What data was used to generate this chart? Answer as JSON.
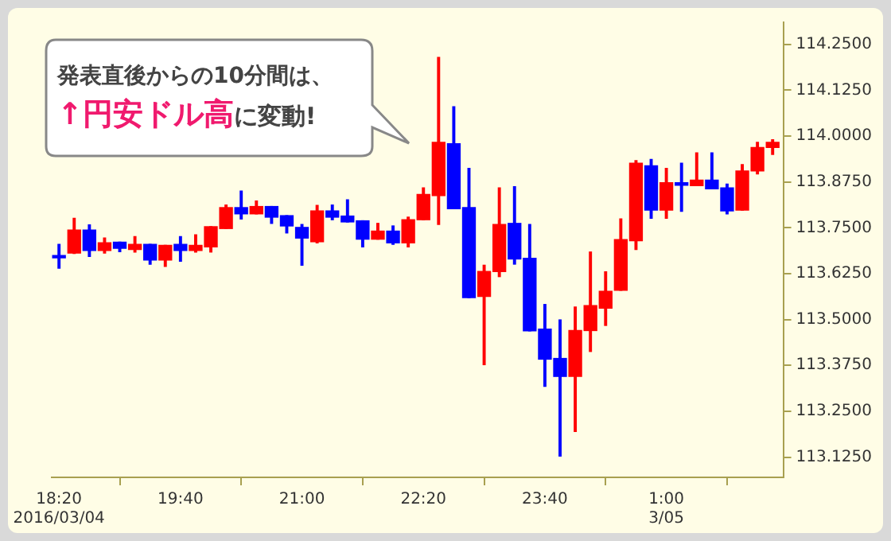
{
  "chart_data": {
    "type": "candlestick",
    "x": [
      "2016-03-04T18:20",
      "2016-03-04T18:30",
      "2016-03-04T18:40",
      "2016-03-04T18:50",
      "2016-03-04T19:00",
      "2016-03-04T19:10",
      "2016-03-04T19:20",
      "2016-03-04T19:30",
      "2016-03-04T19:40",
      "2016-03-04T19:50",
      "2016-03-04T20:00",
      "2016-03-04T20:10",
      "2016-03-04T20:20",
      "2016-03-04T20:30",
      "2016-03-04T20:40",
      "2016-03-04T20:50",
      "2016-03-04T21:00",
      "2016-03-04T21:10",
      "2016-03-04T21:20",
      "2016-03-04T21:30",
      "2016-03-04T21:40",
      "2016-03-04T21:50",
      "2016-03-04T22:00",
      "2016-03-04T22:10",
      "2016-03-04T22:20",
      "2016-03-04T22:30",
      "2016-03-04T22:40",
      "2016-03-04T22:50",
      "2016-03-04T23:00",
      "2016-03-04T23:10",
      "2016-03-04T23:20",
      "2016-03-04T23:30",
      "2016-03-04T23:40",
      "2016-03-04T23:50",
      "2016-03-05T00:00",
      "2016-03-05T00:10",
      "2016-03-05T00:20",
      "2016-03-05T00:30",
      "2016-03-05T00:40",
      "2016-03-05T00:50",
      "2016-03-05T01:00",
      "2016-03-05T01:10",
      "2016-03-05T01:20",
      "2016-03-05T01:30",
      "2016-03-05T01:40",
      "2016-03-05T01:50",
      "2016-03-05T02:00",
      "2016-03-05T02:10"
    ],
    "ohlc": [
      [
        113.671,
        113.705,
        113.64,
        113.668
      ],
      [
        113.681,
        113.776,
        113.68,
        113.744
      ],
      [
        113.744,
        113.758,
        113.672,
        113.688
      ],
      [
        113.688,
        113.722,
        113.681,
        113.709
      ],
      [
        113.711,
        113.711,
        113.685,
        113.694
      ],
      [
        113.691,
        113.726,
        113.684,
        113.705
      ],
      [
        113.705,
        113.705,
        113.651,
        113.662
      ],
      [
        113.662,
        113.702,
        113.645,
        113.702
      ],
      [
        113.705,
        113.726,
        113.659,
        113.688
      ],
      [
        113.688,
        113.731,
        113.684,
        113.702
      ],
      [
        113.698,
        113.753,
        113.684,
        113.753
      ],
      [
        113.748,
        113.812,
        113.748,
        113.805
      ],
      [
        113.805,
        113.85,
        113.774,
        113.788
      ],
      [
        113.788,
        113.823,
        113.788,
        113.808
      ],
      [
        113.808,
        113.808,
        113.762,
        113.779
      ],
      [
        113.783,
        113.783,
        113.736,
        113.755
      ],
      [
        113.751,
        113.759,
        113.648,
        113.722
      ],
      [
        113.712,
        113.811,
        113.709,
        113.796
      ],
      [
        113.796,
        113.812,
        113.772,
        113.779
      ],
      [
        113.782,
        113.826,
        113.766,
        113.766
      ],
      [
        113.769,
        113.769,
        113.698,
        113.719
      ],
      [
        113.719,
        113.762,
        113.719,
        113.741
      ],
      [
        113.741,
        113.755,
        113.705,
        113.709
      ],
      [
        113.709,
        113.779,
        113.698,
        113.772
      ],
      [
        113.772,
        113.859,
        113.772,
        113.841
      ],
      [
        113.838,
        114.214,
        113.759,
        113.983
      ],
      [
        113.979,
        114.08,
        113.802,
        113.802
      ],
      [
        113.805,
        113.912,
        113.56,
        113.56
      ],
      [
        113.563,
        113.648,
        113.377,
        113.631
      ],
      [
        113.631,
        113.859,
        113.617,
        113.759
      ],
      [
        113.762,
        113.862,
        113.651,
        113.665
      ],
      [
        113.667,
        113.759,
        113.469,
        113.469
      ],
      [
        113.474,
        113.541,
        113.318,
        113.392
      ],
      [
        113.394,
        113.499,
        113.128,
        113.345
      ],
      [
        113.345,
        113.534,
        113.195,
        113.47
      ],
      [
        113.47,
        113.684,
        113.413,
        113.538
      ],
      [
        113.531,
        113.63,
        113.484,
        113.577
      ],
      [
        113.58,
        113.774,
        113.58,
        113.718
      ],
      [
        113.715,
        113.933,
        113.691,
        113.926
      ],
      [
        113.919,
        113.936,
        113.776,
        113.798
      ],
      [
        113.798,
        113.912,
        113.776,
        113.873
      ],
      [
        113.873,
        113.926,
        113.795,
        113.866
      ],
      [
        113.865,
        113.954,
        113.865,
        113.88
      ],
      [
        113.88,
        113.954,
        113.856,
        113.856
      ],
      [
        113.859,
        113.869,
        113.788,
        113.796
      ],
      [
        113.798,
        113.922,
        113.798,
        113.905
      ],
      [
        113.905,
        113.983,
        113.897,
        113.969
      ],
      [
        113.969,
        113.99,
        113.95,
        113.983
      ]
    ],
    "colors": [
      "#0000ff",
      "#ff0000",
      "#0000ff",
      "#ff0000",
      "#0000ff",
      "#ff0000",
      "#0000ff",
      "#ff0000",
      "#0000ff",
      "#ff0000",
      "#ff0000",
      "#ff0000",
      "#0000ff",
      "#ff0000",
      "#0000ff",
      "#0000ff",
      "#0000ff",
      "#ff0000",
      "#0000ff",
      "#0000ff",
      "#0000ff",
      "#ff0000",
      "#0000ff",
      "#ff0000",
      "#ff0000",
      "#ff0000",
      "#0000ff",
      "#0000ff",
      "#ff0000",
      "#ff0000",
      "#0000ff",
      "#0000ff",
      "#0000ff",
      "#0000ff",
      "#ff0000",
      "#ff0000",
      "#ff0000",
      "#ff0000",
      "#ff0000",
      "#0000ff",
      "#ff0000",
      "#0000ff",
      "#ff0000",
      "#0000ff",
      "#0000ff",
      "#ff0000",
      "#ff0000",
      "#ff0000"
    ],
    "xlim": [
      "2016-03-04T18:15",
      "2016-03-05T02:17"
    ],
    "xticks": [
      {
        "value": "2016-03-04T18:20",
        "label": "18:20\n2016/03/04"
      },
      {
        "value": "2016-03-04T19:40",
        "label": "19:40"
      },
      {
        "value": "2016-03-04T21:00",
        "label": "21:00"
      },
      {
        "value": "2016-03-04T22:20",
        "label": "22:20"
      },
      {
        "value": "2016-03-04T23:40",
        "label": "23:40"
      },
      {
        "value": "2016-03-05T01:00",
        "label": "1:00\n3/05"
      }
    ],
    "ylim": [
      113.07,
      114.31
    ],
    "yticks": [
      {
        "value": 113.125,
        "label": "113.1250"
      },
      {
        "value": 113.25,
        "label": "113.2500"
      },
      {
        "value": 113.375,
        "label": "113.3750"
      },
      {
        "value": 113.5,
        "label": "113.5000"
      },
      {
        "value": 113.625,
        "label": "113.6250"
      },
      {
        "value": 113.75,
        "label": "113.7500"
      },
      {
        "value": 113.875,
        "label": "113.8750"
      },
      {
        "value": 114,
        "label": "114.0000"
      },
      {
        "value": 114.125,
        "label": "114.1250"
      },
      {
        "value": 114.25,
        "label": "114.2500"
      }
    ],
    "annotations": [
      "発表直後からの10分間は、",
      "↑円安ドル高",
      "に変動!"
    ],
    "legend": false
  }
}
